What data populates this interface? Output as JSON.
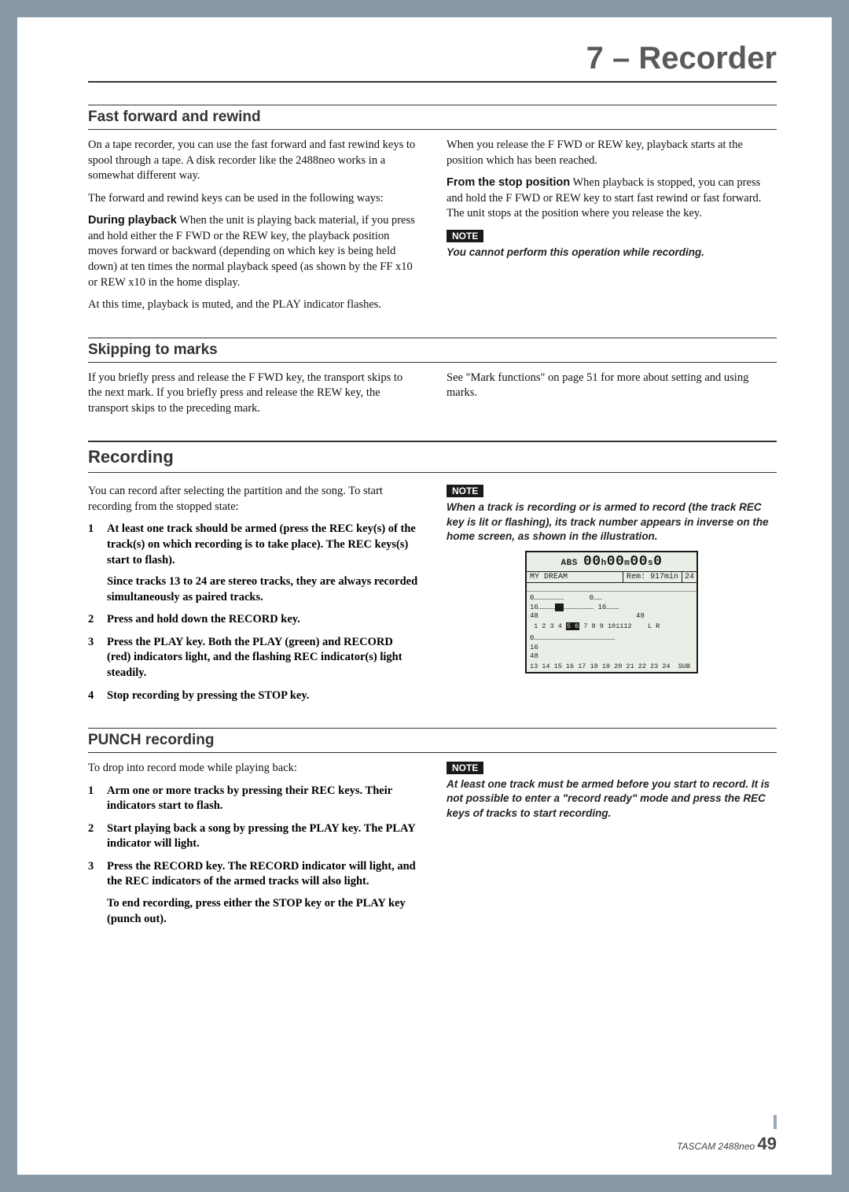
{
  "chapter_title": "7 – Recorder",
  "sections": {
    "ffrw": {
      "heading": "Fast forward and rewind",
      "left_paras": [
        "On a tape recorder, you can use the fast forward and fast rewind keys to spool through a tape. A disk recorder like the 2488neo works in a somewhat different way.",
        "The forward and rewind keys can be used in the following ways:"
      ],
      "during_label": "During playback",
      "during_text": "  When the unit is playing back material, if you press and hold either the F FWD or the REW key, the playback position moves forward or backward (depending on which key is being held down) at ten times the normal playback speed (as shown by the FF x10 or REW x10 in the home display.",
      "left_tail": "At this time, playback is muted, and the PLAY indicator flashes.",
      "right_para": "When you release the F FWD or REW key, playback starts at the position which has been reached.",
      "from_stop_label": "From the stop position",
      "from_stop_text": "  When playback is stopped, you can press and hold the F FWD or REW key to start fast rewind or fast forward. The unit stops at the position where you release the key.",
      "note": "You cannot perform this operation while recording."
    },
    "skip": {
      "heading": "Skipping to marks",
      "left": "If you briefly press and release the F FWD key, the transport skips to the next mark. If you briefly press and release the REW key, the transport skips to the preceding mark.",
      "right": "See \"Mark functions\" on page 51 for more about setting and using marks."
    },
    "recording": {
      "heading": "Recording",
      "intro": "You can record after selecting the partition and the song. To start recording from the stopped state:",
      "steps": [
        "At least one track should be armed (press the REC key(s) of the track(s) on which recording is to take place). The REC keys(s) start to flash).",
        "Press and hold down the RECORD key.",
        "Press the PLAY key. Both the PLAY (green) and RECORD (red) indicators light, and the flashing REC indicator(s) light steadily.",
        "Stop recording by pressing the STOP key."
      ],
      "step1_sub": "Since tracks 13 to 24 are stereo tracks, they are always recorded simultaneously as paired tracks.",
      "note": "When a track is recording or is armed to record (the track REC key is lit or flashing), its track number appears in inverse on the home screen, as shown in the illustration.",
      "lcd": {
        "abs_label": "ABS",
        "h": "00",
        "m": "00",
        "s": "00",
        "f": "0",
        "song": "MY DREAM",
        "rem": "Rem: 917min",
        "ch": "24",
        "row_0a": "0…………………",
        "row_0b": "0……",
        "row_16a": "16…………",
        "row_16b": "…………………",
        "row_16c": "16………",
        "row_48a": "48",
        "row_48b": "48",
        "tracks1": " 1 2 3 4",
        "tracks_armed": "5 6",
        "tracks1b": "7 8 9 101112",
        "lr": "L R",
        "row2_0": "0…………………………………………………",
        "row2_16": "16",
        "row2_48": "48",
        "tracks2": "13 14 15 16 17 18 19 20 21 22 23 24  SUB"
      }
    },
    "punch": {
      "heading": "PUNCH recording",
      "intro": "To drop into record mode while playing back:",
      "steps": [
        "Arm one or more tracks by pressing their REC keys. Their indicators start to flash.",
        "Start playing back a song by pressing the PLAY key. The PLAY indicator will light.",
        "Press the RECORD key. The RECORD indicator will light, and the REC indicators of the armed tracks will also light."
      ],
      "step3_sub": "To end recording, press either the STOP key or the PLAY key (punch out).",
      "note": "At least one track must be armed before you start to record. It is not possible to enter a \"record ready\" mode and press the REC keys of tracks to start recording."
    }
  },
  "note_label": "NOTE",
  "footer": {
    "product": "TASCAM 2488neo",
    "page": "49"
  }
}
